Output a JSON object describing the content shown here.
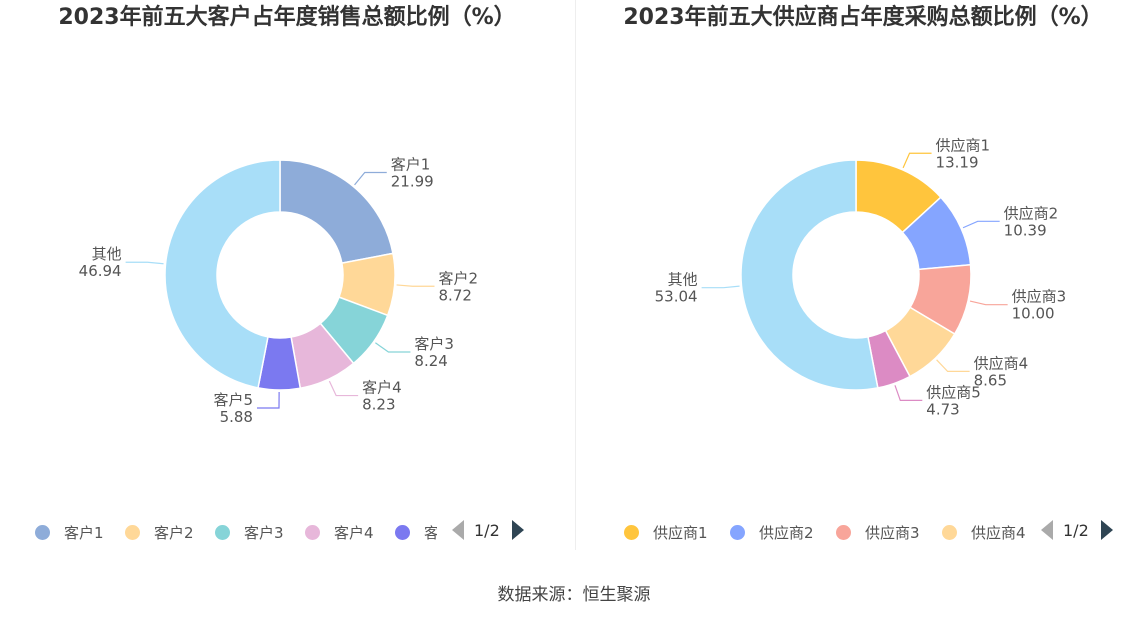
{
  "source_text": "数据来源：恒生聚源",
  "chart_data": [
    {
      "type": "pie",
      "variant": "donut",
      "title": "2023年前五大客户占年度销售总额比例（%）",
      "categories": [
        "客户1",
        "客户2",
        "客户3",
        "客户4",
        "客户5",
        "其他"
      ],
      "values": [
        21.99,
        8.72,
        8.24,
        8.23,
        5.88,
        46.94
      ],
      "value_labels": [
        "21.99",
        "8.72",
        "8.24",
        "8.23",
        "5.88",
        "46.94"
      ],
      "colors": [
        "#8eacd9",
        "#ffd898",
        "#86d4d8",
        "#e7b7da",
        "#7b79f0",
        "#a8def8"
      ],
      "legend": {
        "items": [
          "客户1",
          "客户2",
          "客户3",
          "客户4",
          "客"
        ],
        "position": "bottom",
        "page": "1/2"
      }
    },
    {
      "type": "pie",
      "variant": "donut",
      "title": "2023年前五大供应商占年度采购总额比例（%）",
      "categories": [
        "供应商1",
        "供应商2",
        "供应商3",
        "供应商4",
        "供应商5",
        "其他"
      ],
      "values": [
        13.19,
        10.39,
        10.0,
        8.65,
        4.73,
        53.04
      ],
      "value_labels": [
        "13.19",
        "10.39",
        "10.00",
        "8.65",
        "4.73",
        "53.04"
      ],
      "colors": [
        "#ffc53d",
        "#85a5ff",
        "#f8a59a",
        "#ffd898",
        "#dc8bc4",
        "#a8def8"
      ],
      "legend": {
        "items": [
          "供应商1",
          "供应商2",
          "供应商3",
          "供应商4"
        ],
        "position": "bottom",
        "page": "1/2"
      }
    }
  ]
}
